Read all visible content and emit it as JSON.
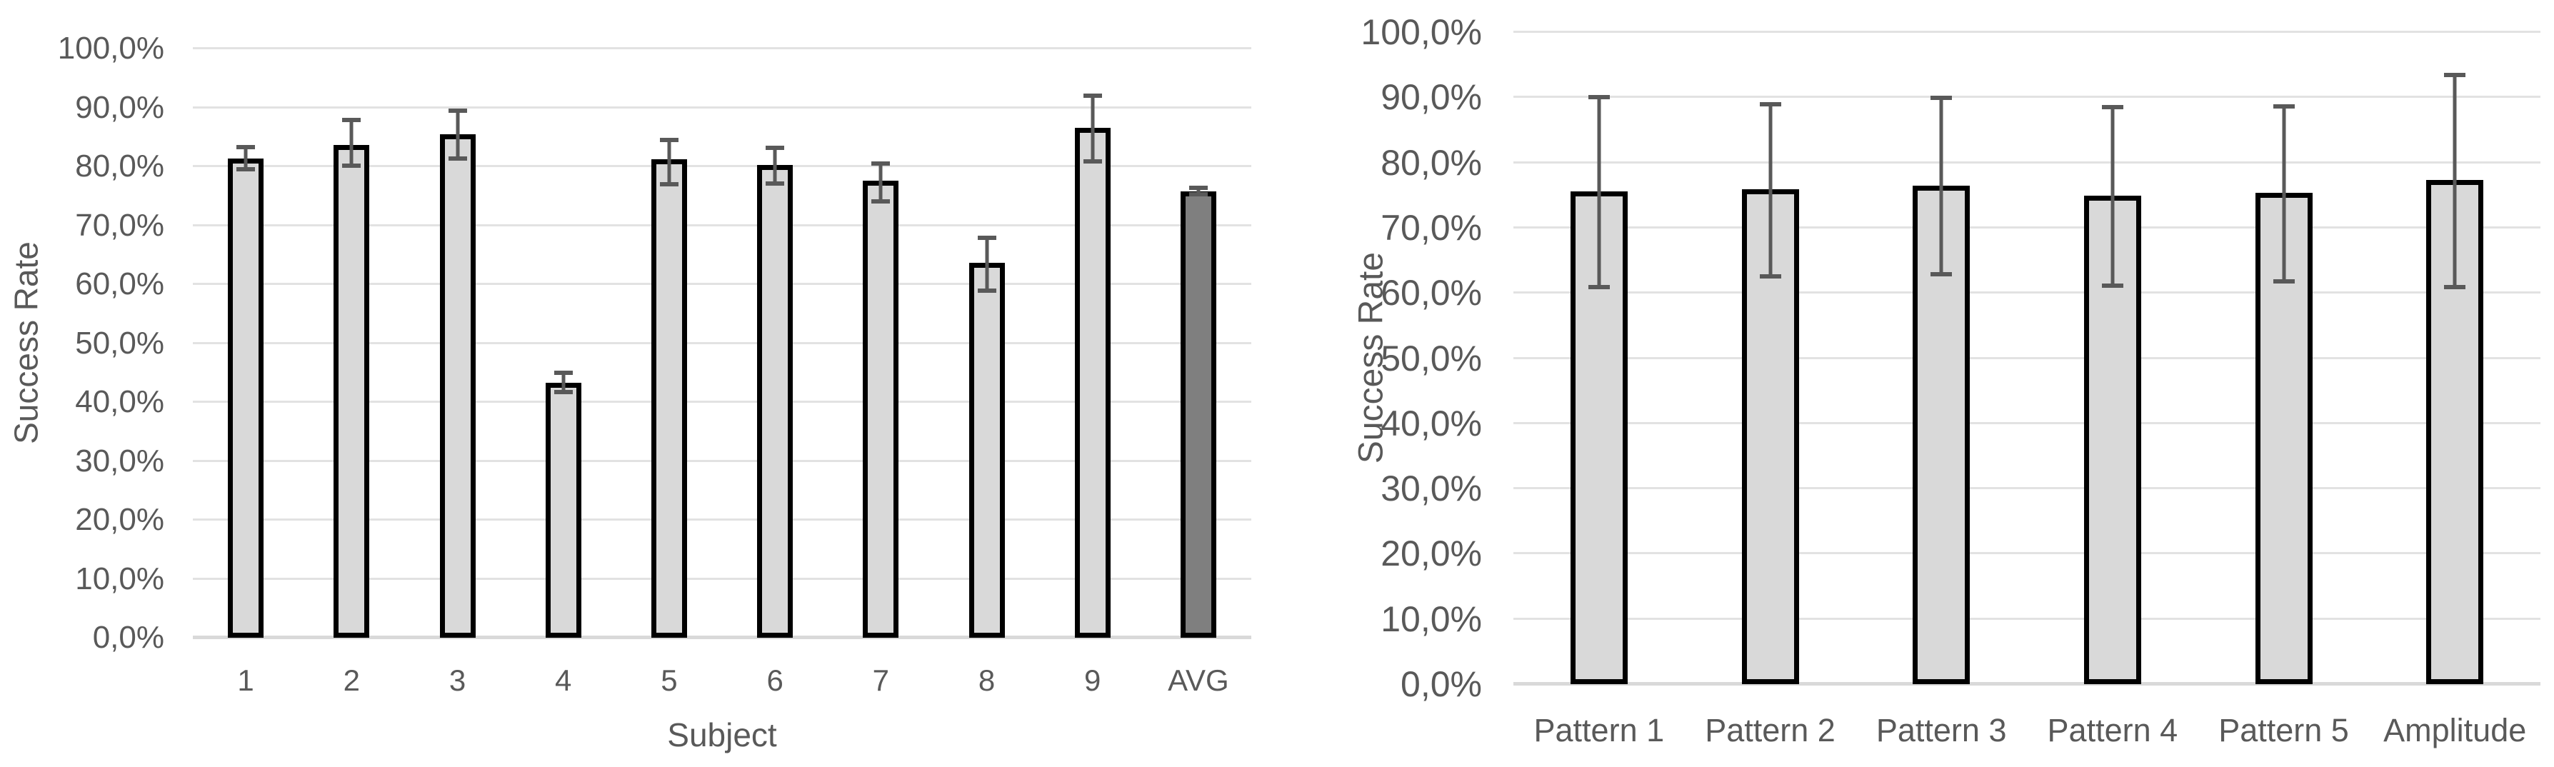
{
  "style": {
    "colors": {
      "bar-fill": "#d9d9d9",
      "bar-avg": "#7f7f7f",
      "bar-border": "#000000",
      "err": "#595959",
      "grid": "#e2e2e2",
      "axis": "#d9d9d9",
      "text": "#595959"
    }
  },
  "chart_data": [
    {
      "name": "success-rate-by-subject",
      "type": "bar",
      "ylabel": "Success Rate",
      "xlabel": "Subject",
      "categories": [
        "1",
        "2",
        "3",
        "4",
        "5",
        "6",
        "7",
        "8",
        "9",
        "AVG"
      ],
      "values": [
        81.3,
        83.6,
        85.4,
        43.3,
        81.2,
        80.2,
        77.6,
        63.6,
        86.5,
        75.8
      ],
      "error_low": [
        79.2,
        79.7,
        81.0,
        41.3,
        76.6,
        76.7,
        73.7,
        58.5,
        80.5,
        74.9
      ],
      "error_high": [
        83.6,
        88.2,
        89.8,
        45.3,
        84.9,
        83.5,
        80.9,
        68.2,
        92.4,
        76.7
      ],
      "ylim": [
        0,
        100
      ],
      "ytick_step": 10,
      "ytick_labels": [
        "0,0%",
        "10,0%",
        "20,0%",
        "30,0%",
        "40,0%",
        "50,0%",
        "60,0%",
        "70,0%",
        "80,0%",
        "90,0%",
        "100,0%"
      ],
      "grid": true,
      "legend": "none",
      "highlight_index": 9
    },
    {
      "name": "success-rate-by-pattern",
      "type": "bar",
      "ylabel": "Success Rate",
      "xlabel": "",
      "categories": [
        "Pattern 1",
        "Pattern 2",
        "Pattern 3",
        "Pattern 4",
        "Pattern 5",
        "Amplitude"
      ],
      "values": [
        75.6,
        75.9,
        76.5,
        74.9,
        75.4,
        77.3
      ],
      "error_low": [
        60.6,
        62.2,
        62.5,
        60.8,
        61.5,
        60.6
      ],
      "error_high": [
        90.4,
        89.3,
        90.2,
        88.8,
        88.9,
        93.8
      ],
      "ylim": [
        0,
        100
      ],
      "ytick_step": 10,
      "ytick_labels": [
        "0,0%",
        "10,0%",
        "20,0%",
        "30,0%",
        "40,0%",
        "50,0%",
        "60,0%",
        "70,0%",
        "80,0%",
        "90,0%",
        "100,0%"
      ],
      "grid": true,
      "legend": "none",
      "highlight_index": -1
    }
  ]
}
